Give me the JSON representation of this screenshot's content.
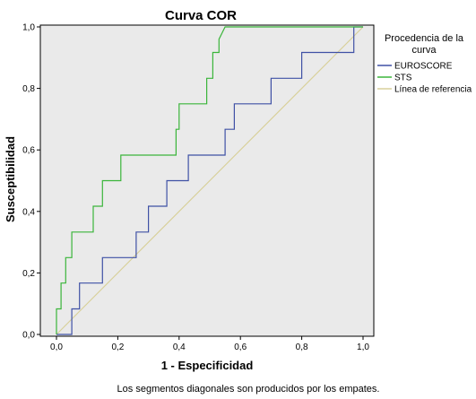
{
  "chart_data": {
    "type": "line",
    "title": "Curva COR",
    "xlabel": "1 - Especificidad",
    "ylabel": "Susceptibilidad",
    "xlim": [
      0,
      1
    ],
    "ylim": [
      0,
      1
    ],
    "x_ticks": [
      "0,0",
      "0,2",
      "0,4",
      "0,6",
      "0,8",
      "1,0"
    ],
    "y_ticks": [
      "0,0",
      "0,2",
      "0,4",
      "0,6",
      "0,8",
      "1,0"
    ],
    "grid": false,
    "plot_background": "#eaeaea",
    "legend": {
      "title": "Procedencia de la curva",
      "placement": "right"
    },
    "series": [
      {
        "name": "EUROSCORE",
        "color": "#3f51a5",
        "x": [
          0,
          0.05,
          0.05,
          0.075,
          0.075,
          0.15,
          0.15,
          0.26,
          0.26,
          0.3,
          0.3,
          0.36,
          0.36,
          0.43,
          0.43,
          0.55,
          0.55,
          0.58,
          0.58,
          0.7,
          0.7,
          0.8,
          0.8,
          0.97,
          0.97,
          1.0
        ],
        "y": [
          0,
          0,
          0.083,
          0.083,
          0.167,
          0.167,
          0.25,
          0.25,
          0.333,
          0.333,
          0.417,
          0.417,
          0.5,
          0.5,
          0.583,
          0.583,
          0.667,
          0.667,
          0.75,
          0.75,
          0.833,
          0.833,
          0.917,
          0.917,
          1.0,
          1.0
        ]
      },
      {
        "name": "STS",
        "color": "#3ab53a",
        "x": [
          0,
          0,
          0.015,
          0.015,
          0.03,
          0.03,
          0.05,
          0.05,
          0.12,
          0.12,
          0.15,
          0.15,
          0.21,
          0.21,
          0.39,
          0.39,
          0.4,
          0.4,
          0.49,
          0.49,
          0.51,
          0.51,
          0.53,
          0.53,
          0.54,
          0.55,
          1.0
        ],
        "y": [
          0,
          0.083,
          0.083,
          0.167,
          0.167,
          0.25,
          0.25,
          0.333,
          0.333,
          0.417,
          0.417,
          0.5,
          0.5,
          0.583,
          0.583,
          0.667,
          0.667,
          0.75,
          0.75,
          0.833,
          0.833,
          0.917,
          0.917,
          0.96,
          0.98,
          1.0,
          1.0
        ]
      },
      {
        "name": "Línea de referencia",
        "color": "#d8d09a",
        "x": [
          0,
          1
        ],
        "y": [
          0,
          1
        ]
      }
    ],
    "footnote": "Los segmentos diagonales son producidos por los empates."
  }
}
